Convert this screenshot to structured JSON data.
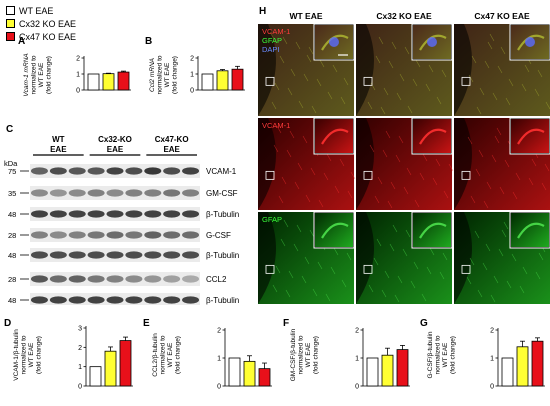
{
  "colors": {
    "wt": "#ffffff",
    "cx32": "#ffff33",
    "cx47": "#e8101a",
    "stroke": "#000000"
  },
  "legend": [
    {
      "label": "WT EAE",
      "color": "#ffffff"
    },
    {
      "label": "Cx32 KO EAE",
      "color": "#ffff33"
    },
    {
      "label": "Cx47 KO EAE",
      "color": "#e8101a"
    }
  ],
  "panels": {
    "A": "A",
    "B": "B",
    "C": "C",
    "D": "D",
    "E": "E",
    "F": "F",
    "G": "G",
    "H": "H"
  },
  "chart_data": [
    {
      "id": "A",
      "type": "bar",
      "categories": [
        "WT EAE",
        "Cx32 KO EAE",
        "Cx47 KO EAE"
      ],
      "values": [
        1.0,
        1.02,
        1.12
      ],
      "errors": [
        0.0,
        0.03,
        0.06
      ],
      "ylabel": [
        "Vcam-1 mRNA",
        "normalized to",
        "WT EAE",
        "(fold change)"
      ],
      "ylim": [
        0,
        2
      ],
      "yticks": [
        "0",
        "1",
        "2"
      ]
    },
    {
      "id": "B",
      "type": "bar",
      "categories": [
        "WT EAE",
        "Cx32 KO EAE",
        "Cx47 KO EAE"
      ],
      "values": [
        1.0,
        1.2,
        1.3
      ],
      "errors": [
        0.0,
        0.08,
        0.18
      ],
      "ylabel": [
        "Ccl2 mRNA",
        "normalized to",
        "WT EAE",
        "(fold change)"
      ],
      "ylim": [
        0,
        2
      ],
      "yticks": [
        "0",
        "1",
        "2"
      ]
    },
    {
      "id": "D",
      "type": "bar",
      "categories": [
        "WT EAE",
        "Cx32 KO EAE",
        "Cx47 KO EAE"
      ],
      "values": [
        1.0,
        1.8,
        2.35
      ],
      "errors": [
        0.0,
        0.22,
        0.18
      ],
      "ylabel": [
        "VCAM-1/β-tubulin",
        "normalized to",
        "WT EAE",
        "(fold change)"
      ],
      "ylim": [
        0,
        3
      ],
      "yticks": [
        "0",
        "1",
        "2",
        "3"
      ]
    },
    {
      "id": "E",
      "type": "bar",
      "categories": [
        "WT EAE",
        "Cx32 KO EAE",
        "Cx47 KO EAE"
      ],
      "values": [
        1.0,
        0.88,
        0.62
      ],
      "errors": [
        0.0,
        0.2,
        0.2
      ],
      "ylabel": [
        "CCL2/β-tubulin",
        "normalized to",
        "WT EAE",
        "(fold change)"
      ],
      "ylim": [
        0,
        2
      ],
      "yticks": [
        "0",
        "1",
        "2"
      ]
    },
    {
      "id": "F",
      "type": "bar",
      "categories": [
        "WT EAE",
        "Cx32 KO EAE",
        "Cx47 KO EAE"
      ],
      "values": [
        1.0,
        1.1,
        1.3
      ],
      "errors": [
        0.0,
        0.25,
        0.15
      ],
      "ylabel": [
        "GM-CSF/β-tubulin",
        "normalized to",
        "WT EAE",
        "(fold change)"
      ],
      "ylim": [
        0,
        2
      ],
      "yticks": [
        "0",
        "1",
        "2"
      ]
    },
    {
      "id": "G",
      "type": "bar",
      "categories": [
        "WT EAE",
        "Cx32 KO EAE",
        "Cx47 KO EAE"
      ],
      "values": [
        1.0,
        1.4,
        1.6
      ],
      "errors": [
        0.0,
        0.2,
        0.12
      ],
      "ylabel": [
        "G-CSF/β-tubulin",
        "normalized to",
        "WT EAE",
        "(fold change)"
      ],
      "ylim": [
        0,
        2
      ],
      "yticks": [
        "0",
        "1",
        "2"
      ]
    }
  ],
  "blot": {
    "kda_label": "kDa",
    "groups": [
      {
        "line1": "WT",
        "line2": "EAE"
      },
      {
        "line1": "Cx32-KO",
        "line2": "EAE"
      },
      {
        "line1": "Cx47-KO",
        "line2": "EAE"
      }
    ],
    "rows": [
      {
        "kda": "75",
        "label": "VCAM-1",
        "intensity": [
          0.75,
          0.85,
          0.8,
          0.8,
          0.9,
          0.85,
          0.95,
          0.85,
          0.9
        ]
      },
      {
        "kda": "35",
        "label": "GM-CSF",
        "intensity": [
          0.55,
          0.5,
          0.55,
          0.6,
          0.55,
          0.6,
          0.6,
          0.65,
          0.6
        ]
      },
      {
        "kda": "48",
        "label": "β-Tubulin",
        "intensity": [
          0.9,
          0.9,
          0.9,
          0.9,
          0.9,
          0.9,
          0.9,
          0.9,
          0.9
        ]
      },
      {
        "kda": "28",
        "label": "G-CSF",
        "intensity": [
          0.6,
          0.55,
          0.6,
          0.65,
          0.7,
          0.65,
          0.75,
          0.7,
          0.7
        ]
      },
      {
        "kda": "48",
        "label": "β-Tubulin",
        "intensity": [
          0.85,
          0.85,
          0.85,
          0.85,
          0.85,
          0.85,
          0.85,
          0.85,
          0.85
        ]
      },
      {
        "kda": "28",
        "label": "CCL2",
        "intensity": [
          0.8,
          0.7,
          0.75,
          0.65,
          0.6,
          0.55,
          0.5,
          0.45,
          0.4
        ]
      },
      {
        "kda": "48",
        "label": "β-Tubulin",
        "intensity": [
          0.9,
          0.9,
          0.9,
          0.9,
          0.9,
          0.9,
          0.9,
          0.9,
          0.9
        ]
      }
    ]
  },
  "micro": {
    "columns": [
      "WT EAE",
      "Cx32 KO EAE",
      "Cx47 KO EAE"
    ],
    "rows": [
      {
        "kind": "merge",
        "labels": [
          {
            "text": "VCAM-1",
            "color": "#ff3b3b"
          },
          {
            "text": "GFAP",
            "color": "#3bff3b"
          },
          {
            "text": "DAPI",
            "color": "#6a8bff"
          }
        ]
      },
      {
        "kind": "red",
        "labels": [
          {
            "text": "VCAM-1",
            "color": "#ff3b3b"
          }
        ]
      },
      {
        "kind": "green",
        "labels": [
          {
            "text": "GFAP",
            "color": "#3bff3b"
          }
        ]
      }
    ]
  }
}
